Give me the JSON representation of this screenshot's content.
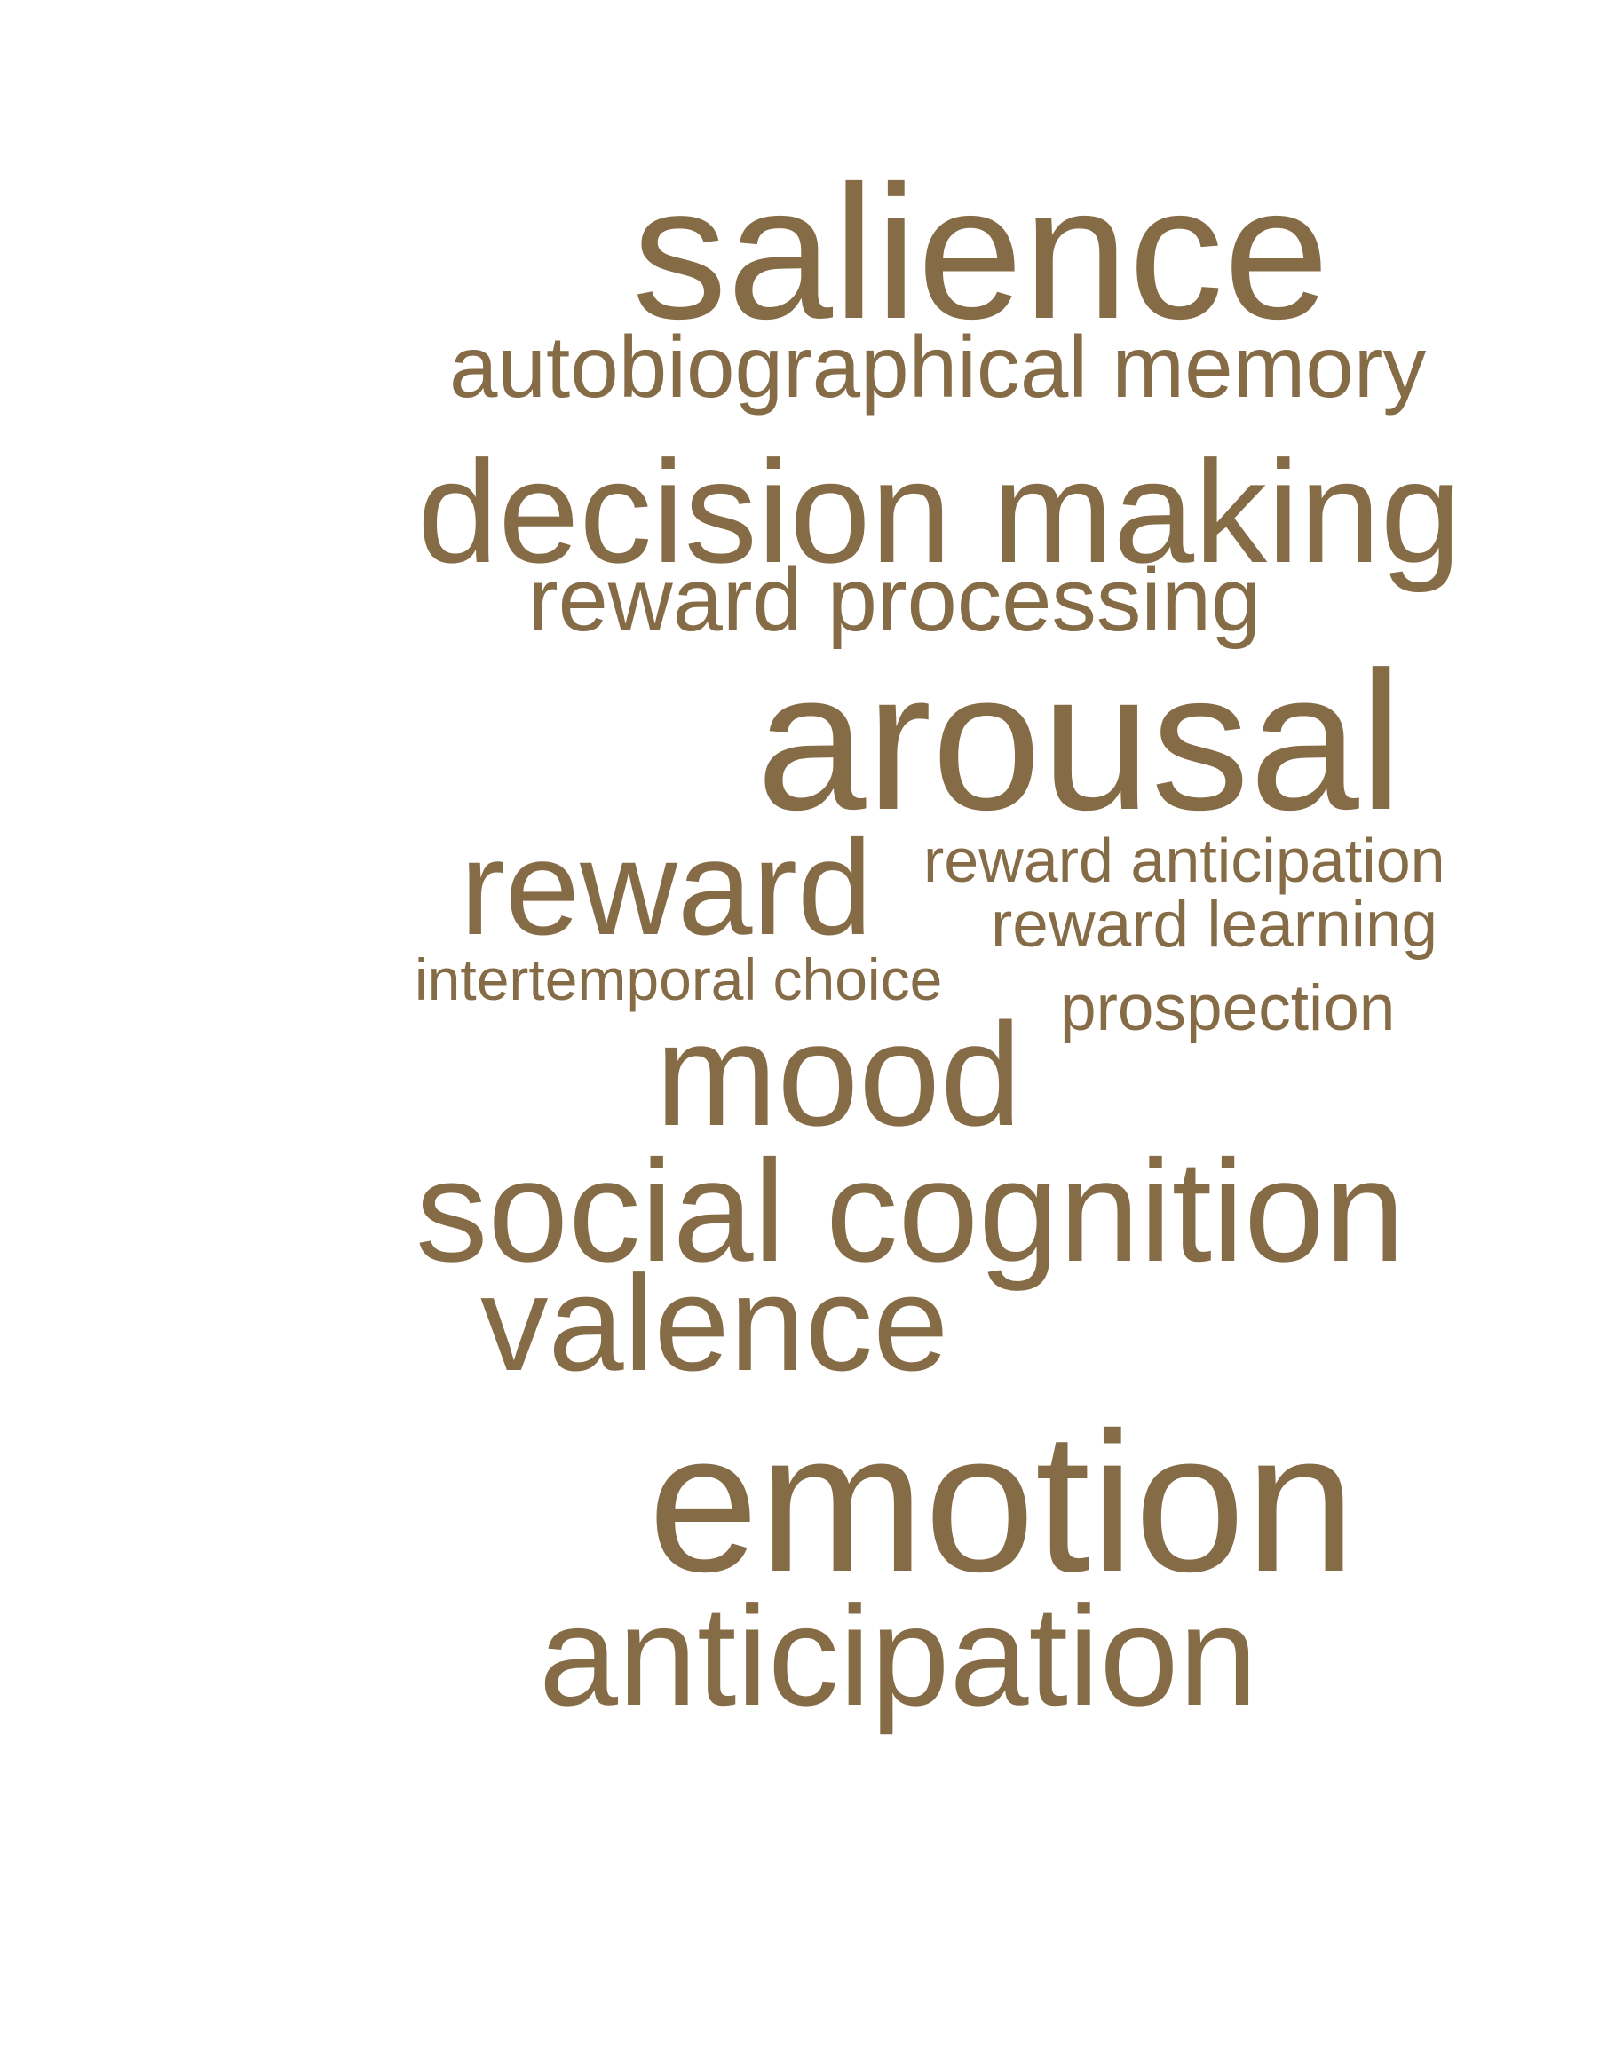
{
  "word_cloud": {
    "color": "#866c46",
    "words": [
      {
        "text": "salience"
      },
      {
        "text": "autobiographical memory"
      },
      {
        "text": "decision making"
      },
      {
        "text": "reward processing"
      },
      {
        "text": "arousal"
      },
      {
        "text": "reward"
      },
      {
        "text": "reward anticipation"
      },
      {
        "text": "reward learning"
      },
      {
        "text": "intertemporal choice"
      },
      {
        "text": "prospection"
      },
      {
        "text": "mood"
      },
      {
        "text": "social cognition"
      },
      {
        "text": "valence"
      },
      {
        "text": "emotion"
      },
      {
        "text": "anticipation"
      }
    ]
  }
}
